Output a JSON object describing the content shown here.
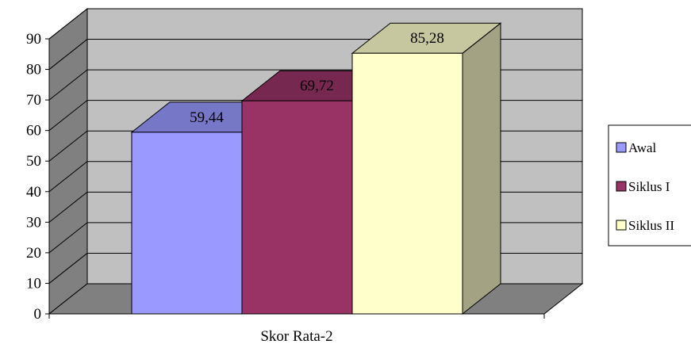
{
  "chart_data": {
    "type": "bar",
    "title": "",
    "xlabel": "",
    "ylabel": "",
    "categories": [
      "Skor Rata-2"
    ],
    "series": [
      {
        "name": "Awal",
        "values": [
          59.44
        ],
        "label": "59,44",
        "color": "#9999ff"
      },
      {
        "name": "Siklus I",
        "values": [
          69.72
        ],
        "label": "69,72",
        "color": "#993366"
      },
      {
        "name": "Siklus II",
        "values": [
          85.28
        ],
        "label": "85,28",
        "color": "#ffffcc"
      }
    ],
    "ylim": [
      0,
      90
    ],
    "yticks": [
      "0",
      "10",
      "20",
      "30",
      "40",
      "50",
      "60",
      "70",
      "80",
      "90"
    ],
    "grid": true,
    "three_d": true,
    "legend": "right",
    "colors": {
      "back_wall": "#c0c0c0",
      "side_wall": "#808080",
      "floor": "#808080",
      "grid": "#000000"
    }
  }
}
